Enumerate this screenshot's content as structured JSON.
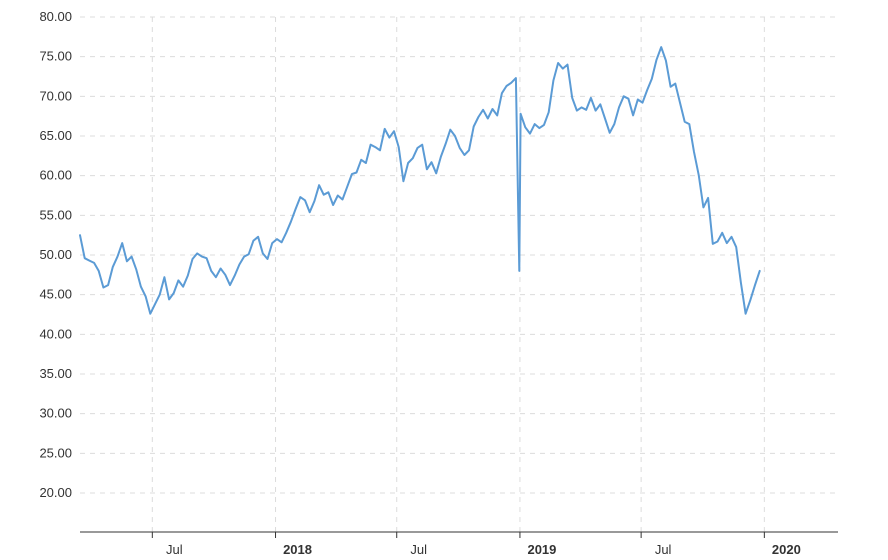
{
  "chart_data": {
    "type": "line",
    "title": "",
    "xlabel": "",
    "ylabel": "",
    "ylim": [
      15,
      80
    ],
    "xlim": [
      "2017-03-15",
      "2020-04-20"
    ],
    "grid": true,
    "legend": "none",
    "y_ticks": [
      "20.00",
      "25.00",
      "30.00",
      "35.00",
      "40.00",
      "45.00",
      "50.00",
      "55.00",
      "60.00",
      "65.00",
      "70.00",
      "75.00",
      "80.00"
    ],
    "x_ticks": [
      {
        "date": "2017-07-01",
        "label": "Jul",
        "bold": false
      },
      {
        "date": "2018-01-01",
        "label": "2018",
        "bold": true
      },
      {
        "date": "2018-07-01",
        "label": "Jul",
        "bold": false
      },
      {
        "date": "2019-01-01",
        "label": "2019",
        "bold": true
      },
      {
        "date": "2019-07-01",
        "label": "Jul",
        "bold": false
      },
      {
        "date": "2020-01-01",
        "label": "2020",
        "bold": true
      }
    ],
    "series": [
      {
        "color": "#5b9bd5",
        "points": [
          [
            "2017-03-15",
            52.5
          ],
          [
            "2017-03-22",
            49.6
          ],
          [
            "2017-03-29",
            49.3
          ],
          [
            "2017-04-05",
            49.0
          ],
          [
            "2017-04-12",
            48.0
          ],
          [
            "2017-04-19",
            45.9
          ],
          [
            "2017-04-26",
            46.2
          ],
          [
            "2017-05-03",
            48.5
          ],
          [
            "2017-05-10",
            49.8
          ],
          [
            "2017-05-17",
            51.5
          ],
          [
            "2017-05-24",
            49.2
          ],
          [
            "2017-05-31",
            49.8
          ],
          [
            "2017-06-07",
            48.2
          ],
          [
            "2017-06-14",
            46.0
          ],
          [
            "2017-06-21",
            44.8
          ],
          [
            "2017-06-28",
            42.6
          ],
          [
            "2017-07-05",
            43.8
          ],
          [
            "2017-07-12",
            45.0
          ],
          [
            "2017-07-19",
            47.2
          ],
          [
            "2017-07-26",
            44.4
          ],
          [
            "2017-08-02",
            45.2
          ],
          [
            "2017-08-09",
            46.8
          ],
          [
            "2017-08-16",
            46.0
          ],
          [
            "2017-08-23",
            47.4
          ],
          [
            "2017-08-30",
            49.5
          ],
          [
            "2017-09-06",
            50.2
          ],
          [
            "2017-09-13",
            49.8
          ],
          [
            "2017-09-20",
            49.6
          ],
          [
            "2017-09-27",
            48.0
          ],
          [
            "2017-10-04",
            47.2
          ],
          [
            "2017-10-11",
            48.3
          ],
          [
            "2017-10-18",
            47.5
          ],
          [
            "2017-10-25",
            46.2
          ],
          [
            "2017-11-01",
            47.4
          ],
          [
            "2017-11-08",
            48.8
          ],
          [
            "2017-11-15",
            49.8
          ],
          [
            "2017-11-22",
            50.1
          ],
          [
            "2017-11-29",
            51.8
          ],
          [
            "2017-12-06",
            52.3
          ],
          [
            "2017-12-13",
            50.2
          ],
          [
            "2017-12-20",
            49.5
          ],
          [
            "2017-12-27",
            51.5
          ],
          [
            "2018-01-03",
            52.0
          ],
          [
            "2018-01-10",
            51.6
          ],
          [
            "2018-01-17",
            52.8
          ],
          [
            "2018-01-24",
            54.2
          ],
          [
            "2018-01-31",
            55.8
          ],
          [
            "2018-02-07",
            57.3
          ],
          [
            "2018-02-14",
            56.9
          ],
          [
            "2018-02-21",
            55.4
          ],
          [
            "2018-02-28",
            56.8
          ],
          [
            "2018-03-07",
            58.8
          ],
          [
            "2018-03-14",
            57.6
          ],
          [
            "2018-03-21",
            57.9
          ],
          [
            "2018-03-28",
            56.3
          ],
          [
            "2018-04-04",
            57.5
          ],
          [
            "2018-04-11",
            57.0
          ],
          [
            "2018-04-18",
            58.6
          ],
          [
            "2018-04-25",
            60.2
          ],
          [
            "2018-05-02",
            60.4
          ],
          [
            "2018-05-09",
            62.0
          ],
          [
            "2018-05-16",
            61.6
          ],
          [
            "2018-05-23",
            63.9
          ],
          [
            "2018-05-30",
            63.6
          ],
          [
            "2018-06-06",
            63.2
          ],
          [
            "2018-06-13",
            65.9
          ],
          [
            "2018-06-20",
            64.8
          ],
          [
            "2018-06-27",
            65.6
          ],
          [
            "2018-07-04",
            63.6
          ],
          [
            "2018-07-11",
            59.3
          ],
          [
            "2018-07-18",
            61.6
          ],
          [
            "2018-07-25",
            62.2
          ],
          [
            "2018-08-01",
            63.5
          ],
          [
            "2018-08-08",
            63.9
          ],
          [
            "2018-08-15",
            60.8
          ],
          [
            "2018-08-22",
            61.7
          ],
          [
            "2018-08-29",
            60.3
          ],
          [
            "2018-09-05",
            62.4
          ],
          [
            "2018-09-12",
            64.0
          ],
          [
            "2018-09-19",
            65.8
          ],
          [
            "2018-09-26",
            65.0
          ],
          [
            "2018-10-03",
            63.5
          ],
          [
            "2018-10-10",
            62.6
          ],
          [
            "2018-10-17",
            63.2
          ],
          [
            "2018-10-24",
            66.2
          ],
          [
            "2018-10-31",
            67.4
          ],
          [
            "2018-11-07",
            68.3
          ],
          [
            "2018-11-14",
            67.2
          ],
          [
            "2018-11-21",
            68.4
          ],
          [
            "2018-11-28",
            67.6
          ],
          [
            "2018-12-05",
            70.4
          ],
          [
            "2018-12-12",
            71.3
          ],
          [
            "2018-12-19",
            71.7
          ],
          [
            "2018-12-26",
            72.3
          ],
          [
            "2019-01-02",
            67.8
          ],
          [
            "2019-01-09",
            66.1
          ],
          [
            "2019-01-16",
            65.3
          ],
          [
            "2019-01-23",
            66.5
          ],
          [
            "2019-01-30",
            66.0
          ],
          [
            "2019-02-06",
            66.4
          ],
          [
            "2019-02-13",
            68.0
          ],
          [
            "2019-02-20",
            72.0
          ],
          [
            "2019-02-27",
            74.2
          ],
          [
            "2019-03-06",
            73.5
          ],
          [
            "2019-03-13",
            74.0
          ],
          [
            "2019-03-20",
            69.8
          ],
          [
            "2019-03-27",
            68.2
          ],
          [
            "2019-04-03",
            68.6
          ],
          [
            "2019-04-10",
            68.3
          ],
          [
            "2019-04-17",
            69.8
          ],
          [
            "2019-04-24",
            68.2
          ],
          [
            "2019-05-01",
            69.0
          ],
          [
            "2019-05-08",
            67.2
          ],
          [
            "2019-05-15",
            65.4
          ],
          [
            "2019-05-22",
            66.5
          ],
          [
            "2019-05-29",
            68.6
          ],
          [
            "2019-06-05",
            70.0
          ],
          [
            "2019-06-12",
            69.7
          ],
          [
            "2019-06-19",
            67.6
          ],
          [
            "2019-06-26",
            69.6
          ],
          [
            "2019-07-03",
            69.2
          ],
          [
            "2019-07-10",
            70.8
          ],
          [
            "2019-07-17",
            72.2
          ],
          [
            "2019-07-24",
            74.6
          ],
          [
            "2019-07-31",
            76.2
          ],
          [
            "2019-08-07",
            74.5
          ],
          [
            "2019-08-14",
            71.2
          ],
          [
            "2019-08-21",
            71.6
          ],
          [
            "2019-08-28",
            69.2
          ],
          [
            "2019-09-04",
            66.8
          ],
          [
            "2019-09-11",
            66.5
          ],
          [
            "2019-09-18",
            63.0
          ],
          [
            "2019-09-25",
            60.1
          ],
          [
            "2019-10-02",
            56.0
          ],
          [
            "2019-10-09",
            57.2
          ],
          [
            "2019-10-16",
            51.4
          ],
          [
            "2019-10-23",
            51.7
          ],
          [
            "2019-10-30",
            52.8
          ],
          [
            "2019-11-06",
            51.5
          ],
          [
            "2019-11-13",
            52.3
          ],
          [
            "2019-11-20",
            51.0
          ],
          [
            "2019-11-27",
            46.5
          ],
          [
            "2019-12-04",
            42.6
          ],
          [
            "2019-12-11",
            44.3
          ],
          [
            "2019-12-18",
            46.2
          ],
          [
            "2019-12-25",
            48.0
          ],
          [
            "2018-12-31",
            48.0
          ]
        ]
      }
    ]
  }
}
